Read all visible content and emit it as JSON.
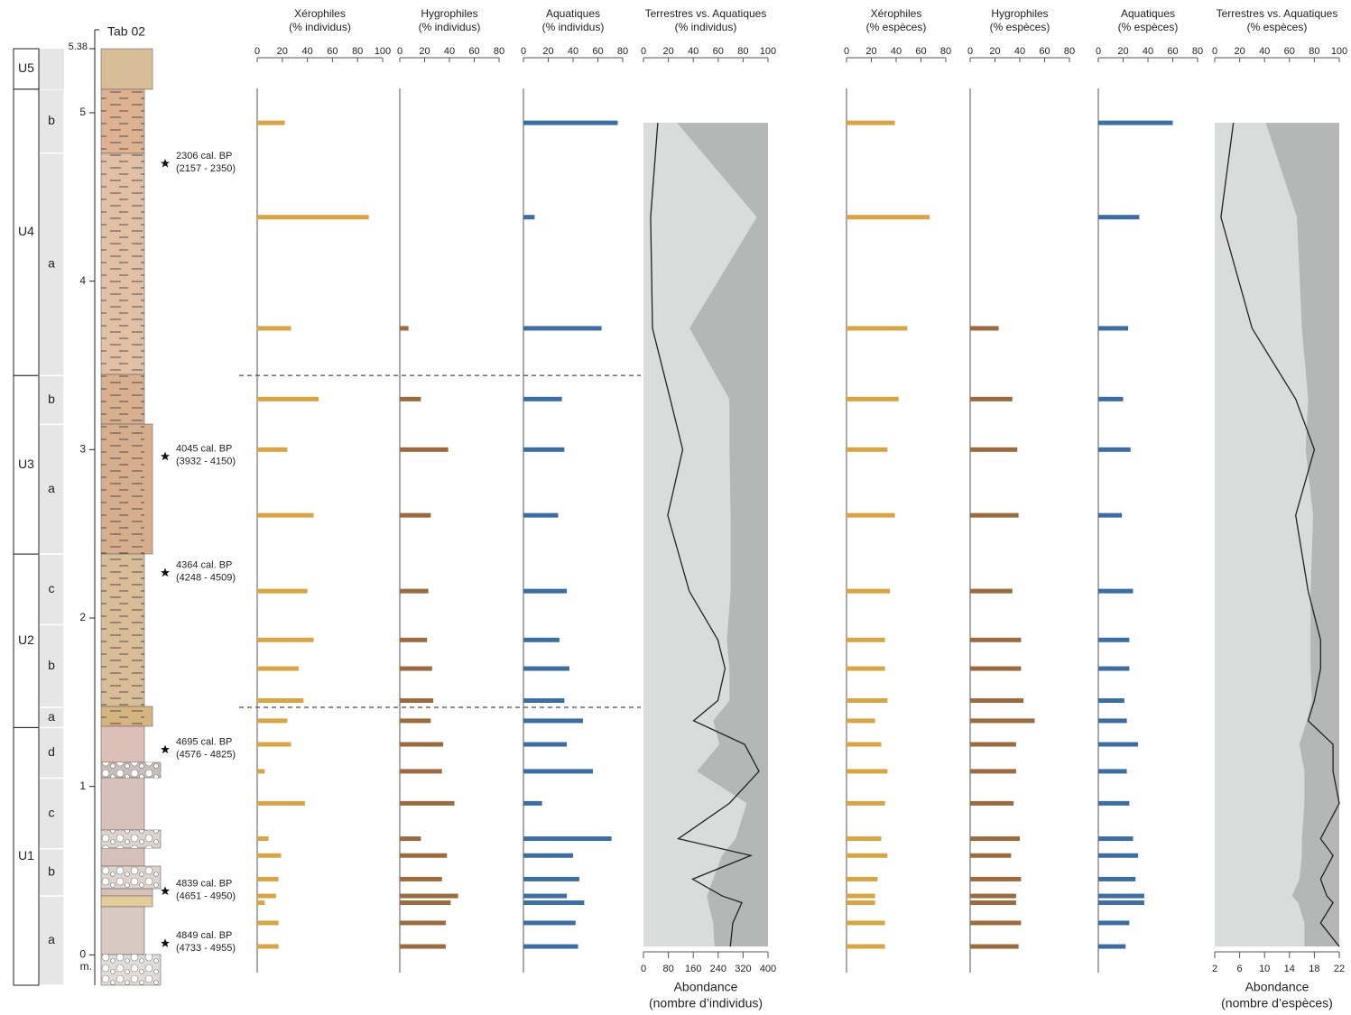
{
  "core_label": "Tab 02",
  "depth_axis": {
    "label": "m.",
    "ylim": [
      -0.18,
      5.38
    ],
    "yticks": [
      0,
      1,
      2,
      3,
      4,
      5,
      5.38
    ]
  },
  "samples": [
    0.05,
    0.19,
    0.31,
    0.35,
    0.45,
    0.59,
    0.69,
    0.9,
    1.09,
    1.25,
    1.39,
    1.51,
    1.7,
    1.87,
    2.16,
    2.61,
    3.0,
    3.3,
    3.72,
    4.38,
    4.94
  ],
  "units": [
    {
      "label": "U1",
      "subunits": [
        {
          "label": "a",
          "bottom": -0.18,
          "top": 0.35
        },
        {
          "label": "b",
          "bottom": 0.35,
          "top": 0.63
        },
        {
          "label": "c",
          "bottom": 0.63,
          "top": 1.05
        },
        {
          "label": "d",
          "bottom": 1.05,
          "top": 1.35
        }
      ]
    },
    {
      "label": "U2",
      "subunits": [
        {
          "label": "a",
          "bottom": 1.35,
          "top": 1.47
        },
        {
          "label": "b",
          "bottom": 1.47,
          "top": 1.96
        },
        {
          "label": "c",
          "bottom": 1.96,
          "top": 2.38
        }
      ]
    },
    {
      "label": "U3",
      "subunits": [
        {
          "label": "a",
          "bottom": 2.38,
          "top": 3.15
        },
        {
          "label": "b",
          "bottom": 3.15,
          "top": 3.44
        }
      ]
    },
    {
      "label": "U4",
      "subunits": [
        {
          "label": "a",
          "bottom": 3.44,
          "top": 4.76
        },
        {
          "label": "b",
          "bottom": 4.76,
          "top": 5.14
        }
      ]
    },
    {
      "label": "U5",
      "bottom": 5.14,
      "top": 5.38
    }
  ],
  "dashed_lines": [
    1.47,
    3.44
  ],
  "dates": [
    {
      "depth": 4.7,
      "label": "2306 cal. BP",
      "range": "(2157 - 2350)"
    },
    {
      "depth": 2.96,
      "label": "4045 cal. BP",
      "range": "(3932 - 4150)"
    },
    {
      "depth": 2.27,
      "label": "4364 cal. BP",
      "range": "(4248 - 4509)"
    },
    {
      "depth": 1.22,
      "label": "4695 cal. BP",
      "range": "(4576 - 4825)"
    },
    {
      "depth": 0.38,
      "label": "4839 cal. BP",
      "range": "(4651 - 4950)"
    },
    {
      "depth": 0.07,
      "label": "4849 cal. BP",
      "range": "(4733 - 4955)"
    }
  ],
  "panels": [
    {
      "type": "bar",
      "title": "Xérophiles",
      "subtitle": "(% individus)",
      "color": "#d9a441",
      "xlim": [
        0,
        100
      ],
      "xticks": [
        0,
        20,
        40,
        60,
        80,
        100
      ],
      "values": [
        17,
        17,
        6,
        15,
        17,
        19,
        9,
        38,
        6,
        27,
        24,
        37,
        33,
        45,
        40,
        45,
        24,
        49,
        27,
        89,
        22
      ]
    },
    {
      "type": "bar",
      "title": "Hygrophiles",
      "subtitle": "(% individus)",
      "color": "#9c6a3c",
      "xlim": [
        0,
        80
      ],
      "xticks": [
        0,
        20,
        40,
        60,
        80
      ],
      "values": [
        37,
        37,
        41,
        47,
        34,
        38,
        17,
        44,
        34,
        35,
        25,
        27,
        26,
        22,
        23,
        25,
        39,
        17,
        7,
        0,
        0
      ]
    },
    {
      "type": "bar",
      "title": "Aquatiques",
      "subtitle": "(% individus)",
      "color": "#3b6ea5",
      "xlim": [
        0,
        80
      ],
      "xticks": [
        0,
        20,
        40,
        60,
        80
      ],
      "values": [
        44,
        42,
        49,
        35,
        45,
        40,
        71,
        15,
        56,
        35,
        48,
        33,
        37,
        29,
        35,
        28,
        33,
        31,
        63,
        9,
        76
      ]
    },
    {
      "type": "area",
      "title": "Terrestres vs. Aquatiques",
      "subtitle": "(% individus)",
      "colors": [
        "#dadcdc",
        "#b5b6b6"
      ],
      "xlim": [
        0,
        100
      ],
      "xticks": [
        0,
        20,
        40,
        60,
        80,
        100
      ],
      "values": [
        57,
        56,
        52,
        51,
        56,
        63,
        74,
        83,
        43,
        61,
        56,
        69,
        69,
        67,
        70,
        70,
        69,
        69,
        37,
        91,
        27
      ],
      "line": {
        "label": "Abondance",
        "sublabel": "(nombre d’individus)",
        "color": "#222222",
        "xlim": [
          0,
          400
        ],
        "xticks": [
          0,
          80,
          160,
          240,
          320,
          400
        ],
        "values": [
          279,
          287,
          316,
          253,
          158,
          345,
          112,
          276,
          371,
          325,
          161,
          239,
          262,
          239,
          147,
          78,
          126,
          86,
          29,
          23,
          46
        ]
      }
    },
    {
      "type": "bar",
      "title": "Xérophiles",
      "subtitle": "(% espèces)",
      "color": "#d9a441",
      "xlim": [
        0,
        80
      ],
      "xticks": [
        0,
        20,
        40,
        60,
        80
      ],
      "values": [
        31,
        31,
        23,
        23,
        25,
        33,
        28,
        31,
        33,
        28,
        23,
        33,
        31,
        31,
        35,
        39,
        33,
        42,
        49,
        67,
        39
      ]
    },
    {
      "type": "bar",
      "title": "Hygrophiles",
      "subtitle": "(% espèces)",
      "color": "#9c6a3c",
      "xlim": [
        0,
        80
      ],
      "xticks": [
        0,
        20,
        40,
        60,
        80
      ],
      "values": [
        39,
        41,
        37,
        37,
        41,
        33,
        40,
        35,
        37,
        37,
        52,
        43,
        41,
        41,
        34,
        39,
        38,
        34,
        23,
        0,
        0
      ]
    },
    {
      "type": "bar",
      "title": "Aquatiques",
      "subtitle": "(% espèces)",
      "color": "#3b6ea5",
      "xlim": [
        0,
        80
      ],
      "xticks": [
        0,
        20,
        40,
        60,
        80
      ],
      "values": [
        22,
        25,
        37,
        37,
        30,
        32,
        28,
        25,
        23,
        32,
        23,
        21,
        25,
        25,
        28,
        19,
        26,
        20,
        24,
        33,
        60
      ]
    },
    {
      "type": "area",
      "title": "Terrestres vs. Aquatiques",
      "subtitle": "(% espèces)",
      "colors": [
        "#dadcdc",
        "#b5b6b6"
      ],
      "xlim": [
        0,
        100
      ],
      "xticks": [
        0,
        20,
        40,
        60,
        80,
        100
      ],
      "values": [
        72,
        72,
        67,
        62,
        68,
        70,
        70,
        72,
        72,
        68,
        74,
        78,
        77,
        77,
        77,
        79,
        73,
        75,
        70,
        66,
        41
      ],
      "line": {
        "label": "Abondance",
        "sublabel": "(nombre d’espèces)",
        "color": "#222222",
        "xlim": [
          2,
          22
        ],
        "xticks": [
          2,
          6,
          10,
          14,
          18,
          22
        ],
        "values": [
          22,
          19,
          21,
          20,
          19,
          21,
          19,
          22,
          21,
          21,
          17,
          18,
          19,
          19,
          17,
          15,
          18,
          15,
          8,
          3,
          5
        ]
      }
    }
  ]
}
